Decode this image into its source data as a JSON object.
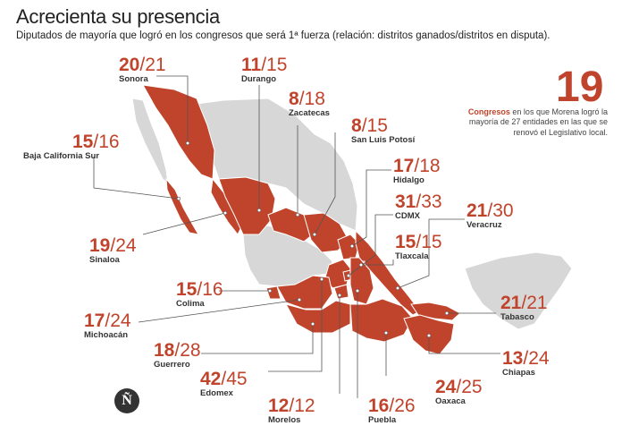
{
  "title": "Acrecienta su presencia",
  "subtitle": "Diputados de mayoría que logró en los congresos que será 1ª fuerza  (relación: distritos ganados/distritos en disputa).",
  "highlight": {
    "number": "19",
    "bold": "Congresos",
    "text": " en los que Morena logró la mayoría de 27 entidades en las que se renovó el Legislativo local."
  },
  "logo": "Ñ",
  "colors": {
    "accent": "#c0432b",
    "won_state": "#c0432b",
    "other_state": "#d7d7d7",
    "sea": "#ffffff"
  },
  "states": [
    {
      "id": "sonora",
      "name": "Sonora",
      "won": "20",
      "total": "21"
    },
    {
      "id": "durango",
      "name": "Durango",
      "won": "11",
      "total": "15"
    },
    {
      "id": "zacatecas",
      "name": "Zacatecas",
      "won": "8",
      "total": "18"
    },
    {
      "id": "slp",
      "name": "San Luis Potosí",
      "won": "8",
      "total": "15"
    },
    {
      "id": "bcs",
      "name": "Baja California Sur",
      "won": "15",
      "total": "16"
    },
    {
      "id": "hidalgo",
      "name": "Hidalgo",
      "won": "17",
      "total": "18"
    },
    {
      "id": "cdmx",
      "name": "CDMX",
      "won": "31",
      "total": "33"
    },
    {
      "id": "veracruz",
      "name": "Veracruz",
      "won": "21",
      "total": "30"
    },
    {
      "id": "sinaloa",
      "name": "Sinaloa",
      "won": "19",
      "total": "24"
    },
    {
      "id": "tlaxcala",
      "name": "Tlaxcala",
      "won": "15",
      "total": "15"
    },
    {
      "id": "colima",
      "name": "Colima",
      "won": "15",
      "total": "16"
    },
    {
      "id": "tabasco",
      "name": "Tabasco",
      "won": "21",
      "total": "21"
    },
    {
      "id": "michoacan",
      "name": "Michoacán",
      "won": "17",
      "total": "24"
    },
    {
      "id": "chiapas",
      "name": "Chiapas",
      "won": "13",
      "total": "24"
    },
    {
      "id": "guerrero",
      "name": "Guerrero",
      "won": "18",
      "total": "28"
    },
    {
      "id": "oaxaca",
      "name": "Oaxaca",
      "won": "24",
      "total": "25"
    },
    {
      "id": "edomex",
      "name": "Edomex",
      "won": "42",
      "total": "45"
    },
    {
      "id": "morelos",
      "name": "Morelos",
      "won": "12",
      "total": "12"
    },
    {
      "id": "puebla",
      "name": "Puebla",
      "won": "16",
      "total": "26"
    }
  ]
}
